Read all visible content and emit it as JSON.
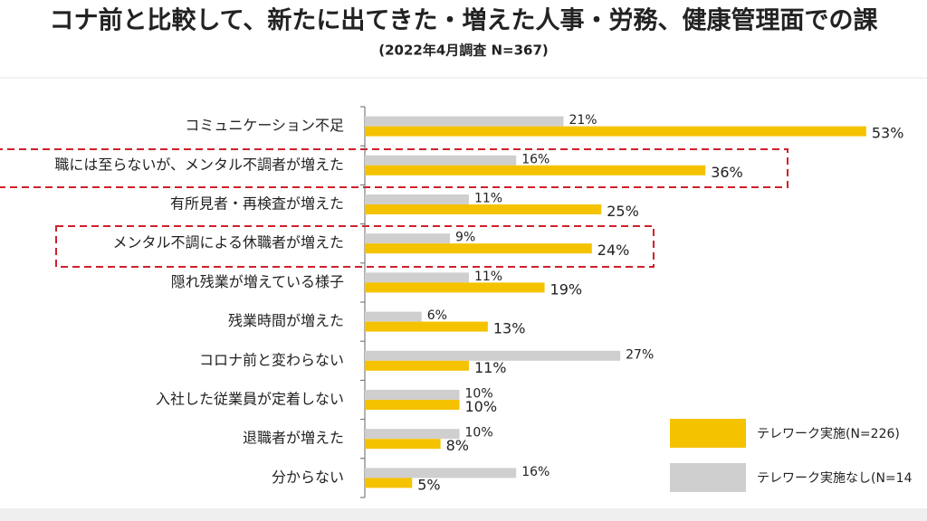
{
  "chart_data": {
    "type": "bar",
    "orientation": "horizontal",
    "title": "コナ前と比較して、新たに出てきた・増えた人事・労務、健康管理面での課",
    "subtitle": "(2022年4月調査 N=367)",
    "categories": [
      "コミュニケーション不足",
      "職には至らないが、メンタル不調者が増えた",
      "有所見者・再検査が増えた",
      "メンタル不調による休職者が増えた",
      "隠れ残業が増えている様子",
      "残業時間が増えた",
      "コロナ前と変わらない",
      "入社した従業員が定着しない",
      "退職者が増えた",
      "分からない"
    ],
    "series": [
      {
        "name": "テレワーク実施(N=226)",
        "color": "#f5c200",
        "values": [
          53,
          36,
          25,
          24,
          19,
          13,
          11,
          10,
          8,
          5
        ],
        "value_labels": [
          "53%",
          "36%",
          "25%",
          "24%",
          "19%",
          "13%",
          "11%",
          "10%",
          "8%",
          "5%"
        ]
      },
      {
        "name": "テレワーク実施なし(N=14",
        "color": "#d0cfcf",
        "values": [
          21,
          16,
          11,
          9,
          11,
          6,
          27,
          10,
          10,
          16
        ],
        "value_labels": [
          "21%",
          "16%",
          "11%",
          "9%",
          "11%",
          "6%",
          "27%",
          "10%",
          "10%",
          "16%"
        ]
      }
    ]
  }
}
